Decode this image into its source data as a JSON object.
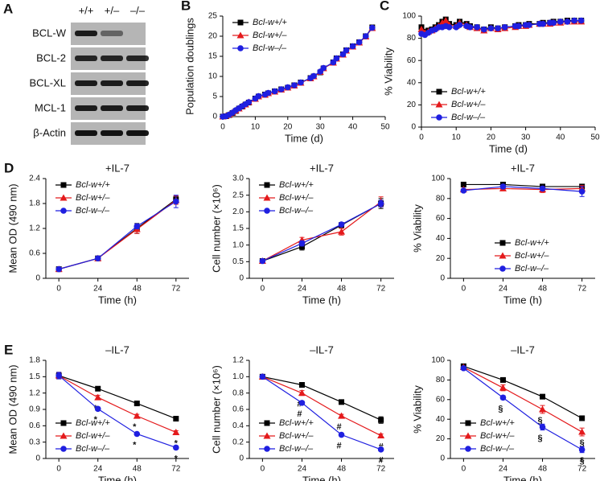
{
  "blot": {
    "panel": "A",
    "columns": [
      "+/+",
      "+/–",
      "–/–"
    ],
    "rows": [
      "BCL-W",
      "BCL-2",
      "BCL-XL",
      "MCL-1",
      "β-Actin"
    ]
  },
  "chart_data": [
    {
      "type": "line",
      "panel": "B",
      "ylabel": "Population doublings",
      "xlabel": "Time (d)",
      "x": [
        0,
        1,
        2,
        3,
        4,
        5,
        6,
        7,
        8,
        10,
        11,
        13,
        14,
        16,
        18,
        20,
        22,
        24,
        27,
        28,
        30,
        31,
        34,
        35,
        37,
        38,
        40,
        42,
        44,
        46
      ],
      "xlim": [
        0,
        50
      ],
      "xticks": [
        0,
        10,
        20,
        30,
        40,
        50
      ],
      "ylim": [
        0,
        25
      ],
      "yticks": [
        0,
        5,
        10,
        15,
        20,
        25
      ],
      "legend": "upper left",
      "series": [
        {
          "name": "Bcl-w+/+",
          "color": "#000000",
          "marker": "square",
          "values": [
            0,
            0.1,
            0.4,
            0.9,
            1.4,
            2,
            2.5,
            3,
            3.5,
            4.5,
            5,
            5.5,
            5.8,
            6.3,
            6.8,
            7.2,
            7.8,
            8.5,
            9.6,
            10,
            11,
            12,
            13.5,
            14.5,
            15.5,
            16.5,
            17.5,
            18.5,
            20,
            22.2
          ]
        },
        {
          "name": "Bcl-w+/–",
          "color": "#e41a1c",
          "marker": "triangle",
          "values": [
            0,
            0.2,
            0.5,
            1,
            1.5,
            2,
            2.6,
            3,
            3.6,
            4.4,
            5,
            5.4,
            5.8,
            6.2,
            6.7,
            7.2,
            7.7,
            8.4,
            9.5,
            10,
            11.1,
            12,
            13.4,
            14.4,
            15.4,
            16.4,
            17.4,
            18.4,
            19.9,
            22
          ]
        },
        {
          "name": "Bcl-w–/–",
          "color": "#1f1fe0",
          "marker": "circle",
          "values": [
            0,
            0.1,
            0.5,
            1,
            1.6,
            2.1,
            2.6,
            3.1,
            3.6,
            4.5,
            5.1,
            5.5,
            5.9,
            6.3,
            6.8,
            7.3,
            7.8,
            8.5,
            9.6,
            10.1,
            11.2,
            12.1,
            13.5,
            14.5,
            15.5,
            16.5,
            17.5,
            18.5,
            20,
            22.1
          ]
        }
      ]
    },
    {
      "type": "line",
      "panel": "C",
      "ylabel": "% Viability",
      "xlabel": "Time (d)",
      "x": [
        0,
        1,
        2,
        3,
        4,
        5,
        6,
        7,
        8,
        10,
        11,
        13,
        14,
        16,
        18,
        20,
        22,
        24,
        27,
        28,
        30,
        31,
        34,
        35,
        37,
        38,
        40,
        42,
        44,
        46
      ],
      "xlim": [
        0,
        50
      ],
      "xticks": [
        0,
        10,
        20,
        30,
        40,
        50
      ],
      "ylim": [
        0,
        100
      ],
      "yticks": [
        0,
        20,
        40,
        60,
        80,
        100
      ],
      "legend": "lower left",
      "series": [
        {
          "name": "Bcl-w+/+",
          "color": "#000000",
          "marker": "square",
          "values": [
            90,
            86,
            87,
            88,
            90,
            92,
            95,
            97,
            93,
            92,
            95,
            93,
            91,
            90,
            88,
            90,
            89,
            90,
            91,
            92,
            92,
            93,
            93,
            94,
            94,
            95,
            95,
            96,
            96,
            96
          ]
        },
        {
          "name": "Bcl-w+/–",
          "color": "#e41a1c",
          "marker": "triangle",
          "values": [
            88,
            85,
            86,
            87,
            89,
            91,
            94,
            96,
            92,
            91,
            94,
            92,
            90,
            89,
            87,
            89,
            88,
            89,
            90,
            91,
            91,
            92,
            93,
            93,
            93,
            94,
            94,
            95,
            95,
            95
          ]
        },
        {
          "name": "Bcl-w–/–",
          "color": "#1f1fe0",
          "marker": "circle",
          "values": [
            84,
            83,
            85,
            87,
            88,
            90,
            90,
            91,
            90,
            90,
            92,
            91,
            90,
            90,
            88,
            89,
            89,
            90,
            91,
            91,
            92,
            92,
            93,
            93,
            94,
            94,
            95,
            95,
            96,
            96
          ]
        }
      ]
    },
    {
      "type": "line",
      "panel": "D",
      "title": "+IL-7",
      "ylabel": "Mean OD (490 nm)",
      "xlabel": "Time (h)",
      "x": [
        0,
        24,
        48,
        72
      ],
      "xlim": [
        -8,
        80
      ],
      "xticks": [
        0,
        24,
        48,
        72
      ],
      "ylim": [
        0,
        2.4
      ],
      "yticks": [
        0,
        0.6,
        1.2,
        1.8,
        2.4
      ],
      "legend": "upper left",
      "series": [
        {
          "name": "Bcl-w+/+",
          "color": "#000000",
          "marker": "square",
          "values": [
            0.22,
            0.48,
            1.2,
            1.9
          ],
          "errors": [
            0.04,
            0.04,
            0.12,
            0.08
          ]
        },
        {
          "name": "Bcl-w+/–",
          "color": "#e41a1c",
          "marker": "triangle",
          "values": [
            0.22,
            0.48,
            1.18,
            1.88
          ],
          "errors": [
            0.04,
            0.04,
            0.1,
            0.1
          ]
        },
        {
          "name": "Bcl-w–/–",
          "color": "#1f1fe0",
          "marker": "circle",
          "values": [
            0.22,
            0.48,
            1.25,
            1.85
          ],
          "errors": [
            0.04,
            0.04,
            0.06,
            0.15
          ]
        }
      ]
    },
    {
      "type": "line",
      "title": "+IL-7",
      "ylabel": "Cell number (×10⁶)",
      "xlabel": "Time (h)",
      "x": [
        0,
        24,
        48,
        72
      ],
      "xlim": [
        -8,
        80
      ],
      "xticks": [
        0,
        24,
        48,
        72
      ],
      "ylim": [
        0,
        3
      ],
      "yticks": [
        0,
        0.5,
        {
          "value": 1,
          "label": "1.0"
        },
        1.5,
        {
          "value": 2,
          "label": "2.0"
        },
        2.5,
        {
          "value": 3,
          "label": "3.0"
        }
      ],
      "legend": "upper left",
      "series": [
        {
          "name": "Bcl-w+/+",
          "color": "#000000",
          "marker": "square",
          "values": [
            0.52,
            0.95,
            1.6,
            2.25
          ],
          "errors": [
            0.03,
            0.1,
            0.06,
            0.15
          ]
        },
        {
          "name": "Bcl-w+/–",
          "color": "#e41a1c",
          "marker": "triangle",
          "values": [
            0.52,
            1.15,
            1.4,
            2.3
          ],
          "errors": [
            0.03,
            0.08,
            0.1,
            0.15
          ]
        },
        {
          "name": "Bcl-w–/–",
          "color": "#1f1fe0",
          "marker": "circle",
          "values": [
            0.52,
            1.05,
            1.62,
            2.25
          ],
          "errors": [
            0.03,
            0.08,
            0.06,
            0.1
          ]
        }
      ]
    },
    {
      "type": "line",
      "title": "+IL-7",
      "ylabel": "% Viability",
      "xlabel": "Time (h)",
      "x": [
        0,
        24,
        48,
        72
      ],
      "xlim": [
        -8,
        80
      ],
      "xticks": [
        0,
        24,
        48,
        72
      ],
      "ylim": [
        0,
        100
      ],
      "yticks": [
        0,
        20,
        40,
        60,
        80,
        100
      ],
      "legend": "lower center",
      "series": [
        {
          "name": "Bcl-w+/+",
          "color": "#000000",
          "marker": "square",
          "values": [
            94,
            94,
            92,
            92
          ],
          "errors": [
            1,
            1.5,
            2,
            2
          ]
        },
        {
          "name": "Bcl-w+/–",
          "color": "#e41a1c",
          "marker": "triangle",
          "values": [
            89,
            90,
            89,
            90
          ],
          "errors": [
            1,
            2,
            3,
            3
          ]
        },
        {
          "name": "Bcl-w–/–",
          "color": "#1f1fe0",
          "marker": "circle",
          "values": [
            88,
            92,
            90,
            87
          ],
          "errors": [
            1,
            2,
            2,
            5
          ]
        }
      ]
    },
    {
      "type": "line",
      "panel": "E",
      "title": "–IL-7",
      "ylabel": "Mean OD (490 nm)",
      "xlabel": "Time (h)",
      "x": [
        0,
        24,
        48,
        72
      ],
      "xlim": [
        -8,
        80
      ],
      "xticks": [
        0,
        24,
        48,
        72
      ],
      "ylim": [
        0,
        1.8
      ],
      "yticks": [
        0,
        0.3,
        0.6,
        0.9,
        1.2,
        1.5,
        1.8
      ],
      "legend": "lower left",
      "series": [
        {
          "name": "Bcl-w+/+",
          "color": "#000000",
          "marker": "square",
          "values": [
            1.52,
            1.28,
            1.01,
            0.73
          ],
          "errors": [
            0.06,
            0.04,
            0.02,
            0.02
          ]
        },
        {
          "name": "Bcl-w+/–",
          "color": "#e41a1c",
          "marker": "triangle",
          "values": [
            1.52,
            1.12,
            0.78,
            0.48
          ],
          "errors": [
            0.06,
            0.04,
            0.03,
            0.03
          ],
          "annotations": [
            null,
            "*",
            "*",
            "*"
          ]
        },
        {
          "name": "Bcl-w–/–",
          "color": "#1f1fe0",
          "marker": "circle",
          "values": [
            1.52,
            0.91,
            0.45,
            0.2
          ],
          "errors": [
            0.06,
            0.03,
            0.02,
            0.03
          ],
          "annotations": [
            null,
            "*",
            "*",
            "*"
          ]
        }
      ]
    },
    {
      "type": "line",
      "title": "–IL-7",
      "ylabel": "Cell number (×10⁶)",
      "xlabel": "Time (h)",
      "x": [
        0,
        24,
        48,
        72
      ],
      "xlim": [
        -8,
        80
      ],
      "xticks": [
        0,
        24,
        48,
        72
      ],
      "ylim": [
        0,
        1.2
      ],
      "yticks": [
        0,
        0.2,
        0.4,
        0.6,
        0.8,
        {
          "value": 1,
          "label": "1.0"
        },
        1.2
      ],
      "legend": "lower left",
      "series": [
        {
          "name": "Bcl-w+/+",
          "color": "#000000",
          "marker": "square",
          "values": [
            1.0,
            0.9,
            0.69,
            0.47
          ],
          "errors": [
            0.01,
            0.01,
            0.02,
            0.04
          ]
        },
        {
          "name": "Bcl-w+/–",
          "color": "#e41a1c",
          "marker": "triangle",
          "values": [
            1.0,
            0.8,
            0.52,
            0.28
          ],
          "errors": [
            0.01,
            0.03,
            0.02,
            0.02
          ],
          "annotations": [
            null,
            "#",
            "#",
            "#"
          ]
        },
        {
          "name": "Bcl-w–/–",
          "color": "#1f1fe0",
          "marker": "circle",
          "values": [
            1.0,
            0.68,
            0.29,
            0.11
          ],
          "errors": [
            0.01,
            0.02,
            0.02,
            0.01
          ],
          "annotations": [
            null,
            "#",
            "#",
            "#"
          ]
        }
      ]
    },
    {
      "type": "line",
      "title": "–IL-7",
      "ylabel": "% Viability",
      "xlabel": "Time (h)",
      "x": [
        0,
        24,
        48,
        72
      ],
      "xlim": [
        -8,
        80
      ],
      "xticks": [
        0,
        24,
        48,
        72
      ],
      "ylim": [
        0,
        100
      ],
      "yticks": [
        0,
        20,
        40,
        60,
        80,
        100
      ],
      "legend": "lower left",
      "series": [
        {
          "name": "Bcl-w+/+",
          "color": "#000000",
          "marker": "square",
          "values": [
            94,
            80,
            63,
            41
          ],
          "errors": [
            1,
            2,
            1,
            1
          ]
        },
        {
          "name": "Bcl-w+/–",
          "color": "#e41a1c",
          "marker": "triangle",
          "values": [
            93,
            72,
            50,
            27
          ],
          "errors": [
            1,
            3,
            4,
            4
          ],
          "annotations": [
            null,
            null,
            "§",
            "§"
          ]
        },
        {
          "name": "Bcl-w–/–",
          "color": "#1f1fe0",
          "marker": "circle",
          "values": [
            92,
            62,
            32,
            9
          ],
          "errors": [
            1,
            2,
            3,
            3
          ],
          "annotations": [
            null,
            "§",
            "§",
            "§"
          ]
        }
      ]
    }
  ]
}
